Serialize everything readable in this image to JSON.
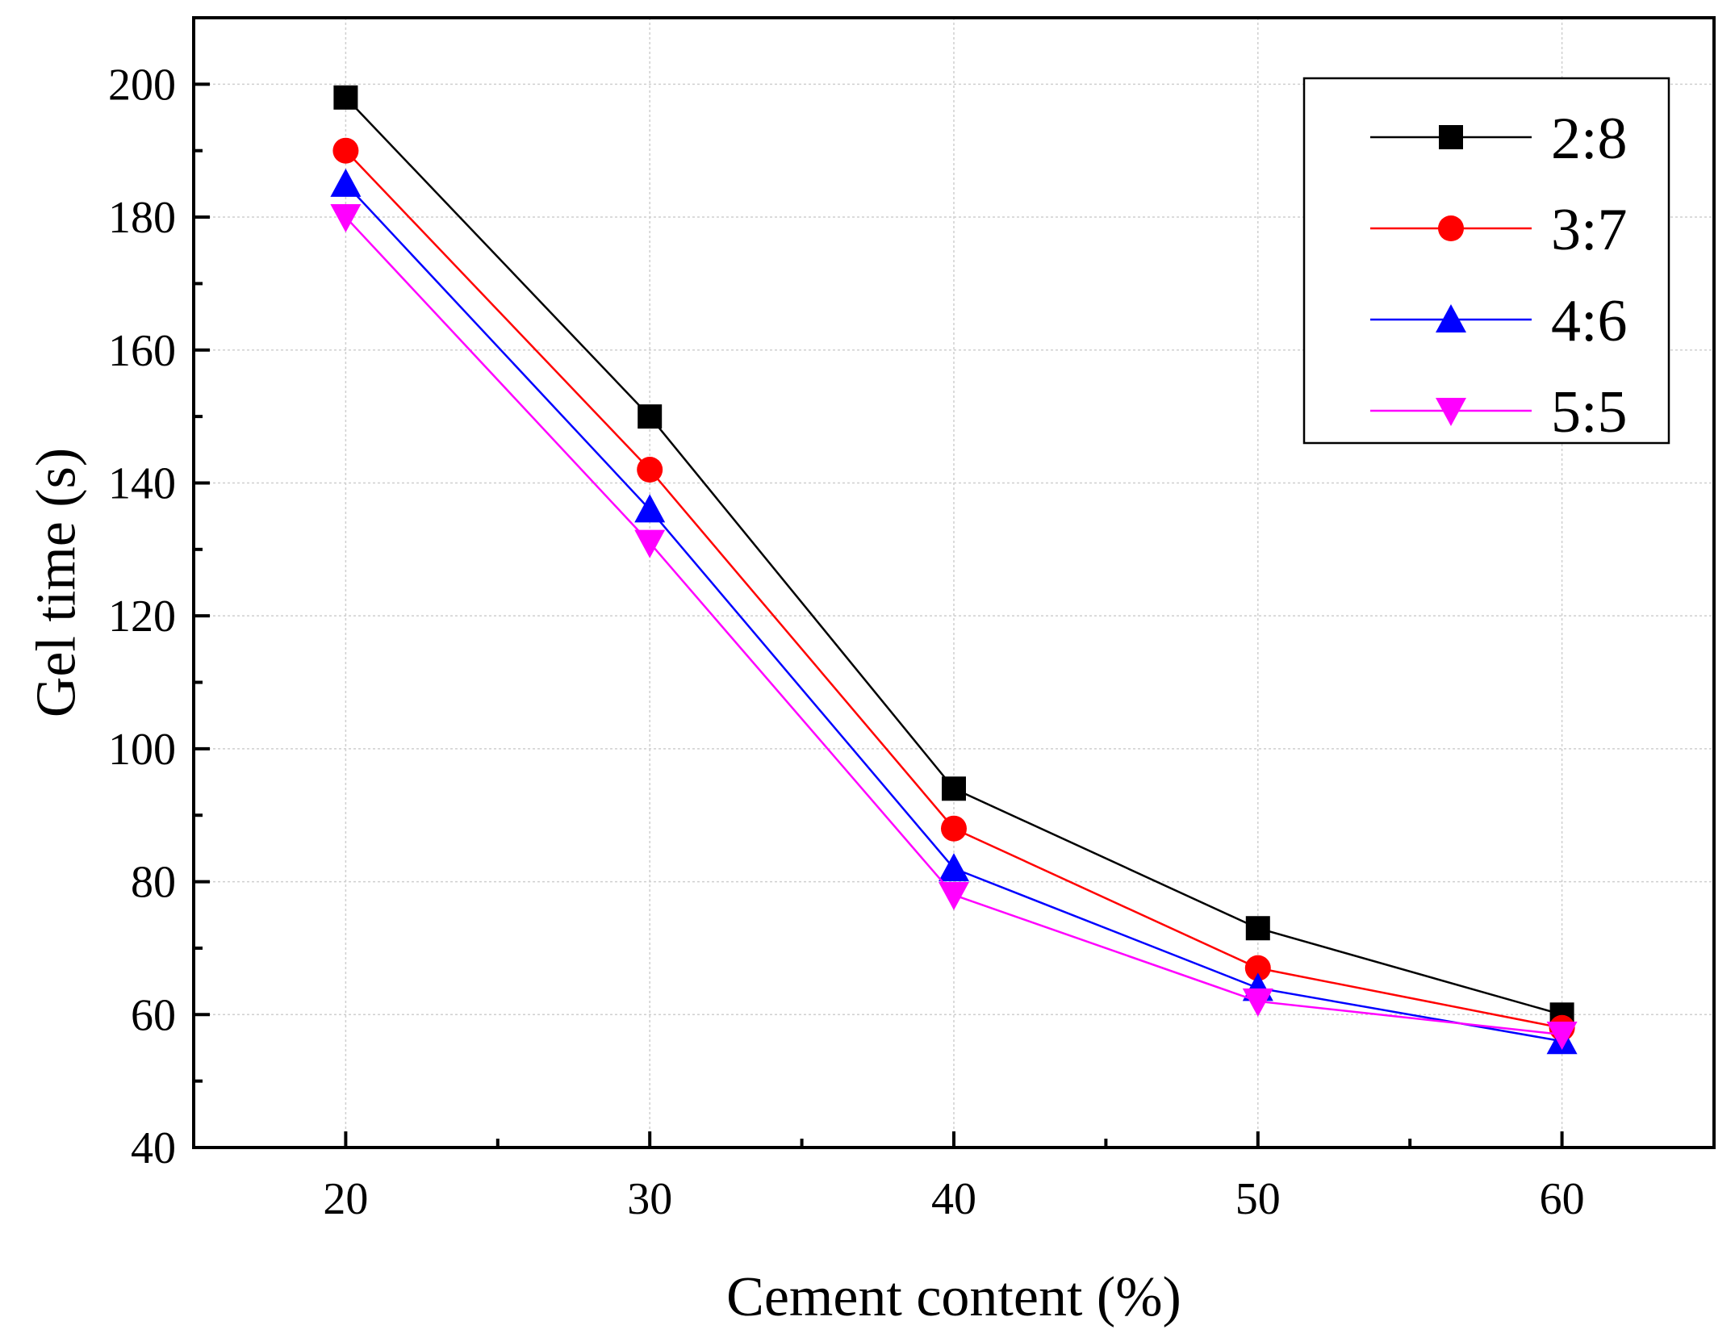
{
  "chart_data": {
    "type": "line",
    "title": "",
    "xlabel": "Cement content (%)",
    "ylabel": "Gel time (s)",
    "x": [
      20,
      30,
      40,
      50,
      60
    ],
    "xticks": [
      20,
      30,
      40,
      50,
      60
    ],
    "yticks": [
      40,
      60,
      80,
      100,
      120,
      140,
      160,
      180,
      200
    ],
    "xlim": [
      15,
      65
    ],
    "ylim": [
      40,
      210
    ],
    "grid": true,
    "legend_position": "top-right",
    "series": [
      {
        "name": "2:8",
        "color": "#000000",
        "marker": "square",
        "values": [
          198,
          150,
          94,
          73,
          60
        ]
      },
      {
        "name": "3:7",
        "color": "#ff0000",
        "marker": "circle",
        "values": [
          190,
          142,
          88,
          67,
          58
        ]
      },
      {
        "name": "4:6",
        "color": "#0000ff",
        "marker": "triangle-up",
        "values": [
          185,
          136,
          82,
          64,
          56
        ]
      },
      {
        "name": "5:5",
        "color": "#ff00ff",
        "marker": "triangle-down",
        "values": [
          180,
          131,
          78,
          62,
          57
        ]
      }
    ]
  }
}
